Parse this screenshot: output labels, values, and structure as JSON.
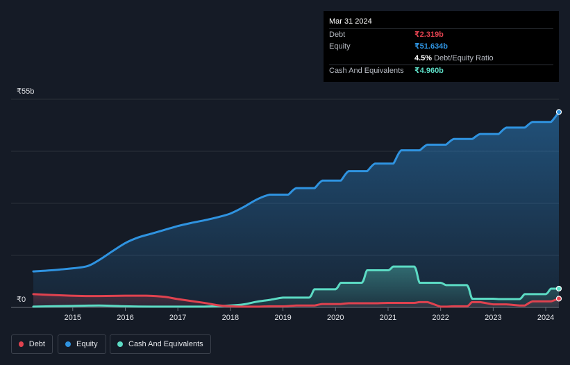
{
  "tooltip": {
    "date": "Mar 31 2024",
    "debt_label": "Debt",
    "debt_value": "₹2.319b",
    "equity_label": "Equity",
    "equity_value": "₹51.634b",
    "ratio_value": "4.5%",
    "ratio_label": "Debt/Equity Ratio",
    "cash_label": "Cash And Equivalents",
    "cash_value": "₹4.960b"
  },
  "legend": {
    "debt": "Debt",
    "equity": "Equity",
    "cash": "Cash And Equivalents"
  },
  "chart_data": {
    "type": "area",
    "title": "",
    "xlabel": "",
    "ylabel": "",
    "ymax_label": "₹55b",
    "ymin_label": "₹0",
    "ylim": [
      0,
      55
    ],
    "xlim": [
      2014.25,
      2024.25
    ],
    "x_ticks": [
      "2015",
      "2016",
      "2017",
      "2018",
      "2019",
      "2020",
      "2021",
      "2022",
      "2023",
      "2024"
    ],
    "colors": {
      "debt": "#e0424f",
      "equity": "#2f93e0",
      "cash": "#5cdbc4",
      "grid": "#2a303b",
      "background": "#151b26"
    },
    "series": [
      {
        "name": "Equity",
        "key": "equity",
        "x": [
          2014.25,
          2014.75,
          2015.25,
          2015.5,
          2015.75,
          2016.0,
          2016.25,
          2016.5,
          2016.75,
          2017.0,
          2017.25,
          2017.5,
          2017.75,
          2018.0,
          2018.25,
          2018.5,
          2018.75,
          2019.0,
          2019.1,
          2019.25,
          2019.5,
          2019.6,
          2019.75,
          2020.0,
          2020.1,
          2020.25,
          2020.5,
          2020.6,
          2020.75,
          2021.0,
          2021.1,
          2021.25,
          2021.5,
          2021.6,
          2021.75,
          2022.0,
          2022.1,
          2022.25,
          2022.5,
          2022.6,
          2022.75,
          2023.0,
          2023.1,
          2023.25,
          2023.5,
          2023.6,
          2023.75,
          2024.0,
          2024.1,
          2024.25
        ],
        "values": [
          9.5,
          10.0,
          10.8,
          12.5,
          14.8,
          17.0,
          18.5,
          19.5,
          20.5,
          21.5,
          22.3,
          23.0,
          23.8,
          24.8,
          26.5,
          28.5,
          29.8,
          29.8,
          29.8,
          31.5,
          31.5,
          31.5,
          33.5,
          33.5,
          33.5,
          36.0,
          36.0,
          36.0,
          38.0,
          38.0,
          38.0,
          41.5,
          41.5,
          41.5,
          43.0,
          43.0,
          43.0,
          44.5,
          44.5,
          44.5,
          45.8,
          45.8,
          45.8,
          47.5,
          47.5,
          47.5,
          49.0,
          49.0,
          49.0,
          51.634
        ]
      },
      {
        "name": "Cash And Equivalents",
        "key": "cash",
        "x": [
          2014.25,
          2015.0,
          2015.5,
          2016.0,
          2016.5,
          2017.0,
          2017.5,
          2018.0,
          2018.25,
          2018.5,
          2018.75,
          2019.0,
          2019.25,
          2019.5,
          2019.6,
          2019.75,
          2020.0,
          2020.1,
          2020.25,
          2020.5,
          2020.6,
          2020.75,
          2021.0,
          2021.1,
          2021.25,
          2021.5,
          2021.6,
          2021.75,
          2022.0,
          2022.1,
          2022.25,
          2022.5,
          2022.6,
          2022.75,
          2023.0,
          2023.1,
          2023.25,
          2023.5,
          2023.6,
          2023.75,
          2024.0,
          2024.1,
          2024.25
        ],
        "values": [
          0.2,
          0.4,
          0.5,
          0.3,
          0.2,
          0.2,
          0.2,
          0.5,
          0.8,
          1.5,
          2.0,
          2.6,
          2.6,
          2.6,
          4.8,
          4.8,
          4.8,
          6.5,
          6.5,
          6.5,
          9.8,
          9.8,
          9.8,
          10.8,
          10.8,
          10.8,
          6.5,
          6.5,
          6.5,
          5.9,
          5.9,
          5.9,
          2.3,
          2.3,
          2.3,
          2.2,
          2.2,
          2.2,
          3.5,
          3.5,
          3.5,
          4.96,
          4.96
        ]
      },
      {
        "name": "Debt",
        "key": "debt",
        "x": [
          2014.25,
          2014.75,
          2015.25,
          2015.5,
          2016.0,
          2016.4,
          2016.75,
          2017.0,
          2017.5,
          2017.75,
          2018.0,
          2018.25,
          2018.5,
          2018.75,
          2019.0,
          2019.25,
          2019.5,
          2019.6,
          2019.75,
          2020.0,
          2020.1,
          2020.25,
          2020.5,
          2020.75,
          2021.0,
          2021.25,
          2021.5,
          2021.6,
          2021.75,
          2022.0,
          2022.1,
          2022.25,
          2022.5,
          2022.6,
          2022.75,
          2023.0,
          2023.1,
          2023.25,
          2023.5,
          2023.6,
          2023.75,
          2024.0,
          2024.1,
          2024.25
        ],
        "values": [
          3.5,
          3.2,
          3.0,
          3.0,
          3.1,
          3.1,
          2.8,
          2.2,
          1.2,
          0.6,
          0.3,
          0.2,
          0.2,
          0.3,
          0.3,
          0.5,
          0.5,
          0.5,
          0.9,
          0.9,
          0.9,
          1.1,
          1.1,
          1.1,
          1.2,
          1.2,
          1.2,
          1.4,
          1.4,
          0.2,
          0.2,
          0.3,
          0.3,
          1.4,
          1.4,
          0.8,
          0.8,
          0.8,
          0.5,
          0.5,
          1.6,
          1.6,
          1.6,
          2.319
        ]
      }
    ]
  }
}
